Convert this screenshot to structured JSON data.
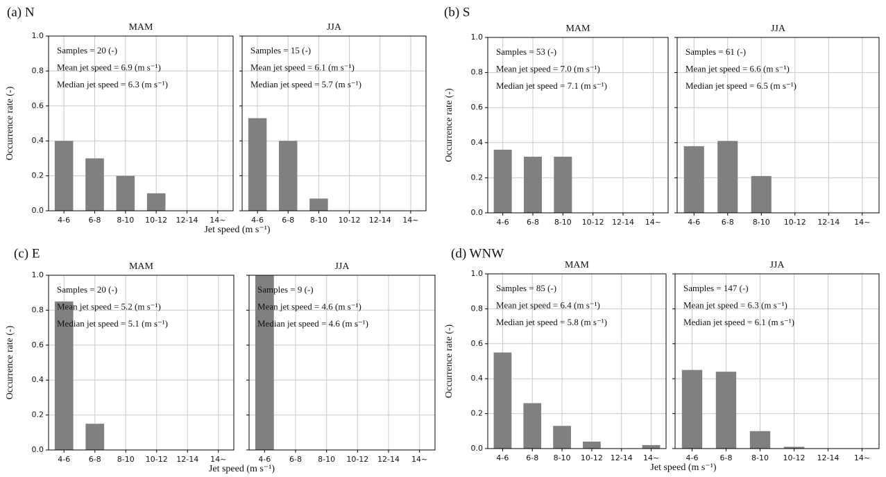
{
  "chart_data": [
    {
      "type": "bar",
      "panel": "(a) N",
      "title": "MAM",
      "ylabel": "Occurrence rate (-)",
      "xlabel": "Jet speed (m s⁻¹)",
      "categories": [
        "4-6",
        "6-8",
        "8-10",
        "10-12",
        "12-14",
        "14~"
      ],
      "values": [
        0.4,
        0.3,
        0.2,
        0.1,
        0,
        0
      ],
      "color": "#808080",
      "ylim": [
        0,
        1
      ],
      "yticks": [
        {
          "value": 0,
          "label": "0.0"
        },
        0.2,
        0.4,
        0.6,
        0.8,
        {
          "value": 1,
          "label": "1.0"
        }
      ],
      "grid": true,
      "annotations": [
        "Samples = 20 (-)",
        "Mean jet speed = 6.9 (m s⁻¹)",
        "Median jet speed = 6.3 (m s⁻¹)"
      ]
    },
    {
      "type": "bar",
      "title": "JJA",
      "categories": [
        "4-6",
        "6-8",
        "8-10",
        "10-12",
        "12-14",
        "14~"
      ],
      "values": [
        0.53,
        0.4,
        0.07,
        0,
        0,
        0
      ],
      "color": "#808080",
      "ylim": [
        0,
        1
      ],
      "yticks": [
        {
          "value": 0,
          "label": "0.0"
        },
        0.2,
        0.4,
        0.6,
        0.8,
        {
          "value": 1,
          "label": "1.0"
        }
      ],
      "grid": true,
      "annotations": [
        "Samples = 15 (-)",
        "Mean jet speed = 6.1 (m s⁻¹)",
        "Median jet speed = 5.7 (m s⁻¹)"
      ]
    },
    {
      "type": "bar",
      "panel": "(b) S",
      "title": "MAM",
      "ylabel": "Occurrence rate (-)",
      "categories": [
        "4-6",
        "6-8",
        "8-10",
        "10-12",
        "12-14",
        "14~"
      ],
      "values": [
        0.36,
        0.32,
        0.32,
        0,
        0,
        0
      ],
      "color": "#808080",
      "ylim": [
        0,
        1
      ],
      "yticks": [
        {
          "value": 0,
          "label": "0.0"
        },
        0.2,
        0.4,
        0.6,
        0.8,
        {
          "value": 1,
          "label": "1.0"
        }
      ],
      "grid": true,
      "annotations": [
        "Samples = 53 (-)",
        "Mean jet speed = 7.0 (m s⁻¹)",
        "Median jet speed = 7.1 (m s⁻¹)"
      ]
    },
    {
      "type": "bar",
      "title": "JJA",
      "categories": [
        "4-6",
        "6-8",
        "8-10",
        "10-12",
        "12-14",
        "14~"
      ],
      "values": [
        0.38,
        0.41,
        0.21,
        0,
        0,
        0
      ],
      "color": "#808080",
      "ylim": [
        0,
        1
      ],
      "yticks": [
        {
          "value": 0,
          "label": "0.0"
        },
        0.2,
        0.4,
        0.6,
        0.8,
        {
          "value": 1,
          "label": "1.0"
        }
      ],
      "grid": true,
      "annotations": [
        "Samples = 61 (-)",
        "Mean jet speed = 6.6 (m s⁻¹)",
        "Median jet speed = 6.5 (m s⁻¹)"
      ]
    },
    {
      "type": "bar",
      "panel": "(c) E",
      "title": "MAM",
      "ylabel": "Occurrence rate (-)",
      "xlabel": "Jet speed (m s⁻¹)",
      "categories": [
        "4-6",
        "6-8",
        "8-10",
        "10-12",
        "12-14",
        "14~"
      ],
      "values": [
        0.85,
        0.15,
        0,
        0,
        0,
        0
      ],
      "color": "#808080",
      "ylim": [
        0,
        1
      ],
      "yticks": [
        {
          "value": 0,
          "label": "0.0"
        },
        0.2,
        0.4,
        0.6,
        0.8,
        {
          "value": 1,
          "label": "1.0"
        }
      ],
      "grid": true,
      "annotations": [
        "Samples = 20 (-)",
        "Mean jet speed = 5.2 (m s⁻¹)",
        "Median jet speed = 5.1 (m s⁻¹)"
      ]
    },
    {
      "type": "bar",
      "title": "JJA",
      "categories": [
        "4-6",
        "6-8",
        "8-10",
        "10-12",
        "12-14",
        "14~"
      ],
      "values": [
        1,
        0,
        0,
        0,
        0,
        0
      ],
      "color": "#808080",
      "ylim": [
        0,
        1
      ],
      "yticks": [
        {
          "value": 0,
          "label": "0.0"
        },
        0.2,
        0.4,
        0.6,
        0.8,
        {
          "value": 1,
          "label": "1.0"
        }
      ],
      "grid": true,
      "annotations": [
        "Samples = 9 (-)",
        "Mean jet speed = 4.6 (m s⁻¹)",
        "Median jet speed = 4.6 (m s⁻¹)"
      ]
    },
    {
      "type": "bar",
      "panel": "(d) WNW",
      "title": "MAM",
      "ylabel": "Occurrence rate (-)",
      "xlabel": "Jet speed (m s⁻¹)",
      "categories": [
        "4-6",
        "6-8",
        "8-10",
        "10-12",
        "12-14",
        "14~"
      ],
      "values": [
        0.55,
        0.26,
        0.13,
        0.04,
        0,
        0.02
      ],
      "color": "#808080",
      "ylim": [
        0,
        1
      ],
      "yticks": [
        {
          "value": 0,
          "label": "0.0"
        },
        0.2,
        0.4,
        0.6,
        0.8,
        {
          "value": 1,
          "label": "1.0"
        }
      ],
      "grid": true,
      "annotations": [
        "Samples = 85 (-)",
        "Mean jet speed = 6.4 (m s⁻¹)",
        "Median jet speed = 5.8 (m s⁻¹)"
      ]
    },
    {
      "type": "bar",
      "title": "JJA",
      "categories": [
        "4-6",
        "6-8",
        "8-10",
        "10-12",
        "12-14",
        "14~"
      ],
      "values": [
        0.45,
        0.44,
        0.1,
        0.01,
        0,
        0
      ],
      "color": "#808080",
      "ylim": [
        0,
        1
      ],
      "yticks": [
        {
          "value": 0,
          "label": "0.0"
        },
        0.2,
        0.4,
        0.6,
        0.8,
        {
          "value": 1,
          "label": "1.0"
        }
      ],
      "grid": true,
      "annotations": [
        "Samples = 147 (-)",
        "Mean jet speed = 6.3 (m s⁻¹)",
        "Median jet speed = 6.1 (m s⁻¹)"
      ]
    }
  ]
}
